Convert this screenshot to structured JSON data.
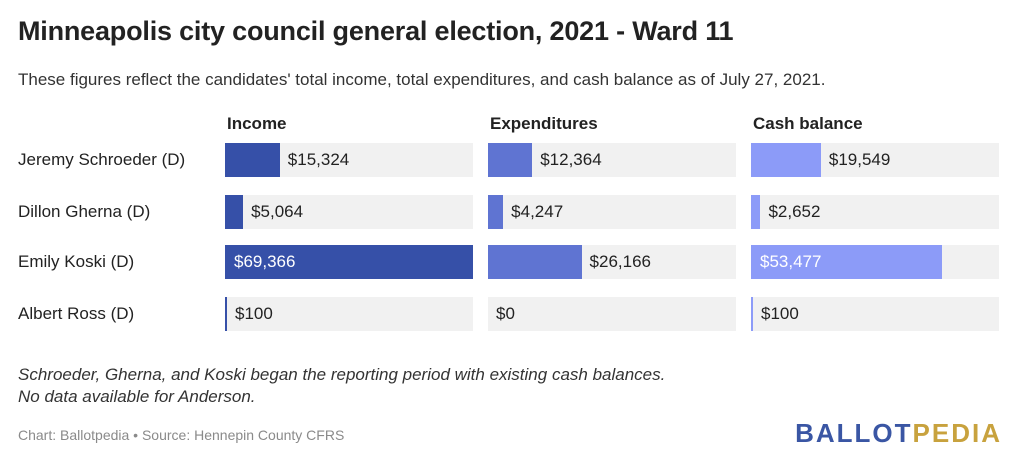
{
  "title": "Minneapolis city council general election, 2021 - Ward 11",
  "subtitle": "These figures reflect the candidates' total income, total expenditures, and cash balance as of July 27, 2021.",
  "chart_data": {
    "type": "bar",
    "categories": [
      "Jeremy Schroeder (D)",
      "Dillon Gherna (D)",
      "Emily Koski (D)",
      "Albert Ross (D)"
    ],
    "series": [
      {
        "name": "Income",
        "values": [
          15324,
          5064,
          69366,
          100
        ],
        "labels": [
          "$15,324",
          "$5,064",
          "$69,366",
          "$100"
        ],
        "color": "#3650a8"
      },
      {
        "name": "Expenditures",
        "values": [
          12364,
          4247,
          26166,
          0
        ],
        "labels": [
          "$12,364",
          "$4,247",
          "$26,166",
          "$0"
        ],
        "color": "#5f74d2"
      },
      {
        "name": "Cash balance",
        "values": [
          19549,
          2652,
          53477,
          100
        ],
        "labels": [
          "$19,549",
          "$2,652",
          "$53,477",
          "$100"
        ],
        "color": "#8c9bf8"
      }
    ],
    "xlim": [
      0,
      69366
    ],
    "grid": false,
    "legend": "none"
  },
  "note_line1": "Schroeder, Gherna, and Koski began the reporting period with existing cash balances.",
  "note_line2": "No data available for Anderson.",
  "source": "Chart: Ballotpedia • Source: Hennepin County CFRS",
  "logo_part1": "BALLOT",
  "logo_part2": "PEDIA",
  "colors": {
    "track": "#f1f1f1",
    "logo_blue": "#3a56a4",
    "logo_gold": "#c8a23e"
  }
}
